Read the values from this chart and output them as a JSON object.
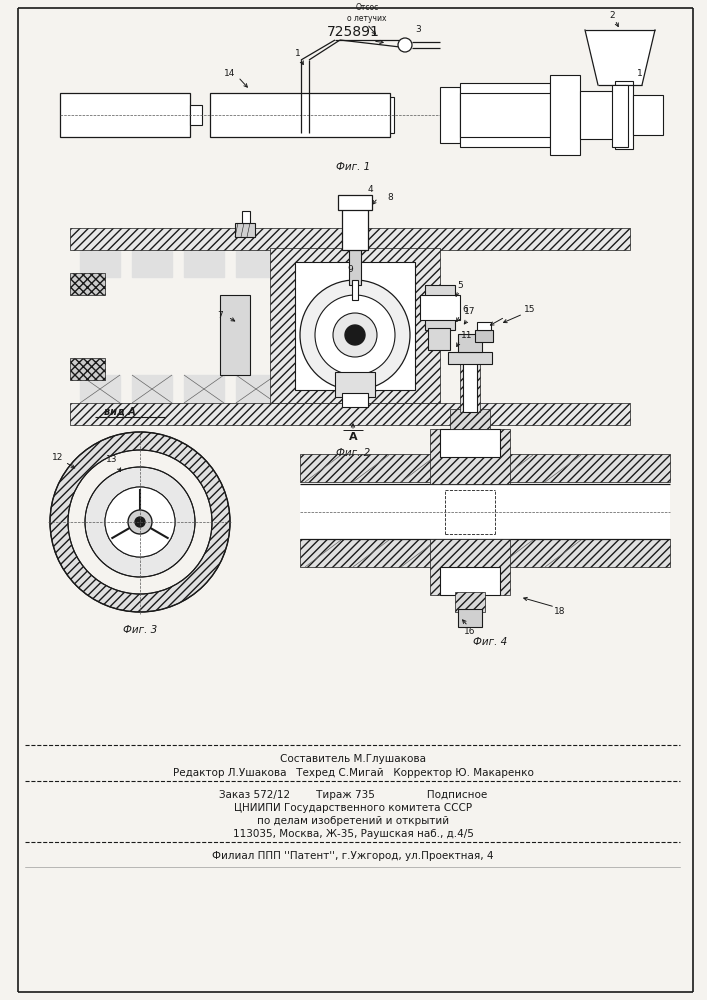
{
  "patent_number": "725891",
  "background_color": "#f5f3ef",
  "fig_label_1": "Фиг. 1",
  "fig_label_2": "Фиг. 2",
  "fig_label_3": "Фиг. 3",
  "fig_label_4": "Фиг. 4",
  "view_a": "вид A",
  "otsos": "Отсос\nо летучих",
  "footer_line1": "Составитель М.Глушакова",
  "footer_line2": "Редактор Л.Ушакова   Техред С.Мигай   Корректор Ю. Макаренко",
  "footer_line3": "Заказ 572/12        Тираж 735                Подписное",
  "footer_line4": "ЦНИИПИ Государственного комитета СССР",
  "footer_line5": "по делам изобретений и открытий",
  "footer_line6": "113035, Москва, Ж-35, Раушская наб., д.4/5",
  "footer_line7": "Филиал ППП ''Патент'', г.Ужгород, ул.Проектная, 4"
}
